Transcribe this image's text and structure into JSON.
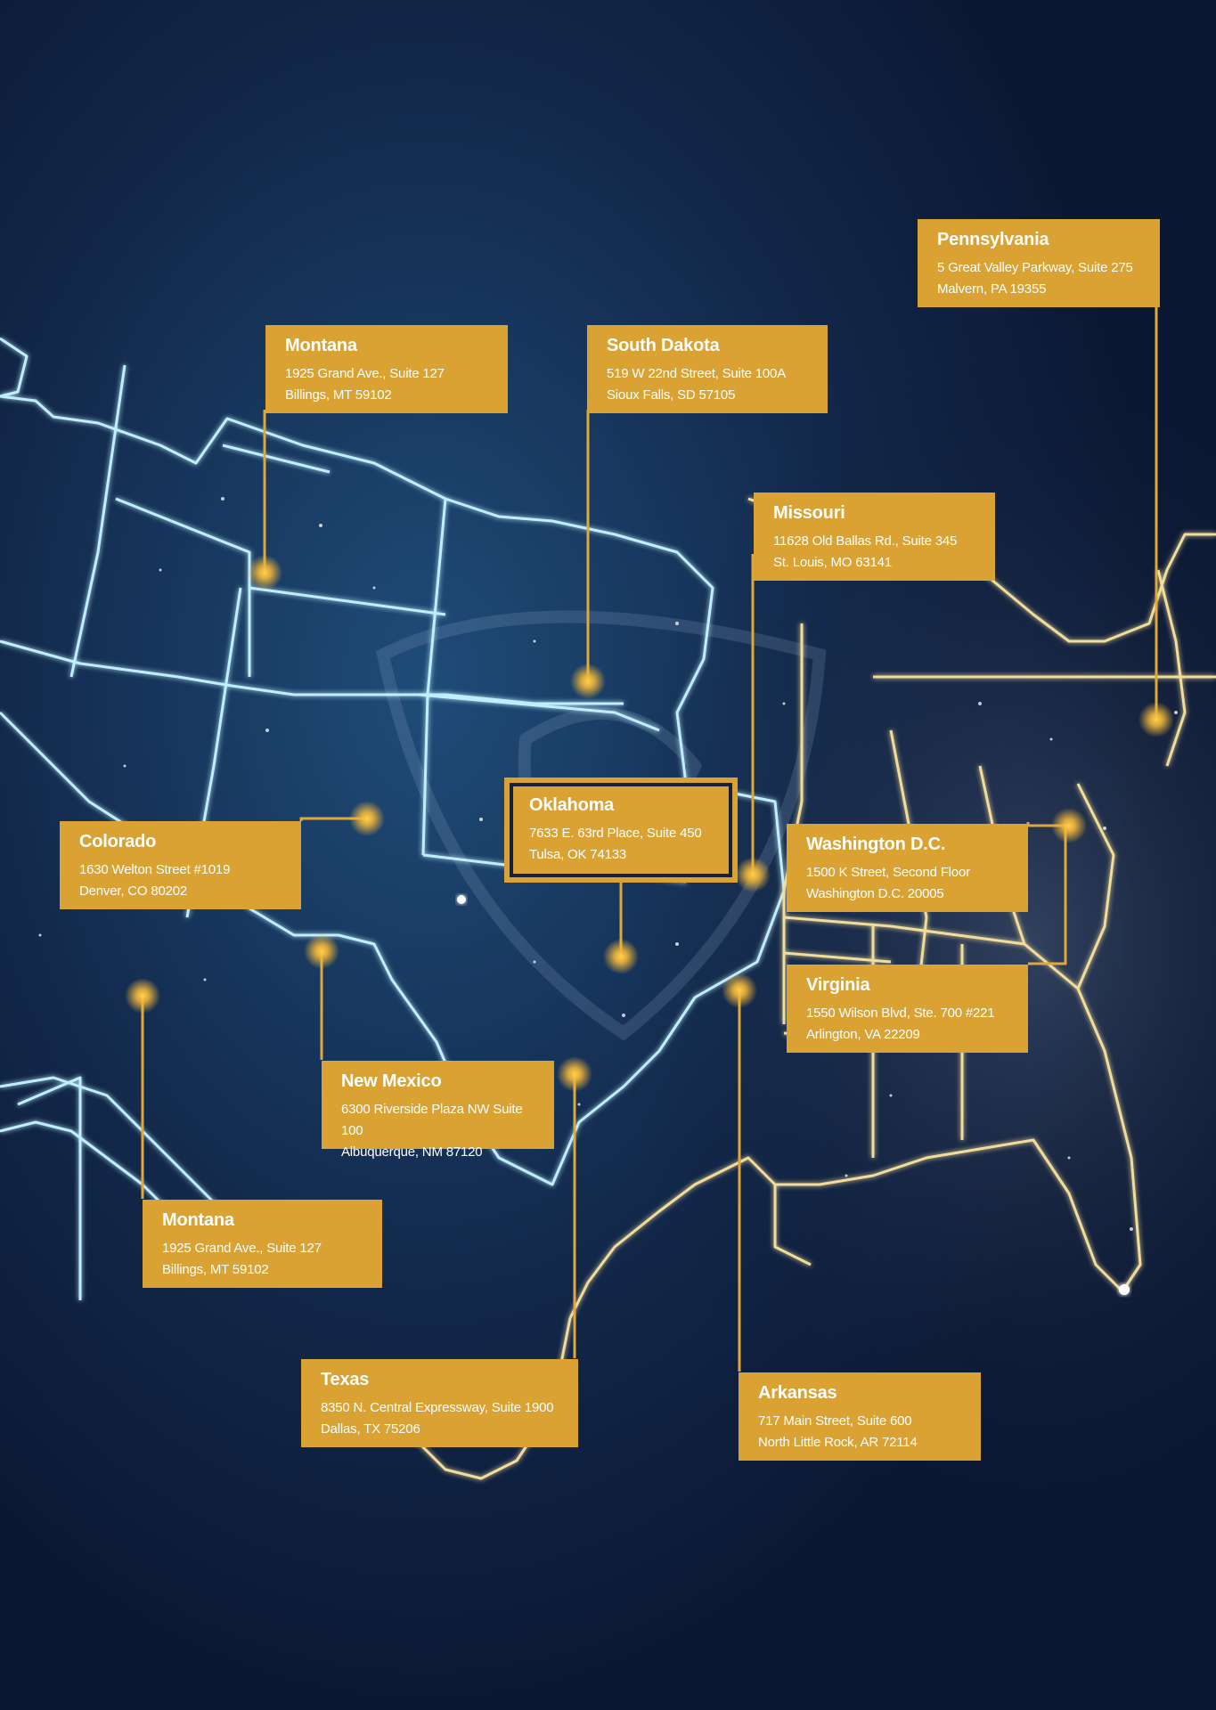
{
  "colors": {
    "background": "#0c1a36",
    "label_fill": "#d9a232",
    "label_text": "#ffffff",
    "connector": "#e0a83a",
    "west_outline": "#bfefff",
    "east_outline": "#f1dc9a",
    "featured_border": "#14213f"
  },
  "offices": [
    {
      "id": "montana-north",
      "name": "Montana",
      "address1": "1925 Grand Ave., Suite 127",
      "address2": "Billings, MT 59102"
    },
    {
      "id": "south-dakota",
      "name": "South Dakota",
      "address1": "519 W 22nd Street, Suite 100A",
      "address2": "Sioux Falls, SD 57105"
    },
    {
      "id": "pennsylvania",
      "name": "Pennsylvania",
      "address1": "5 Great Valley Parkway, Suite 275",
      "address2": "Malvern, PA 19355"
    },
    {
      "id": "missouri",
      "name": "Missouri",
      "address1": "11628 Old Ballas Rd., Suite 345",
      "address2": "St. Louis, MO 63141"
    },
    {
      "id": "oklahoma",
      "name": "Oklahoma",
      "address1": "7633 E. 63rd Place, Suite 450",
      "address2": "Tulsa, OK 74133",
      "featured": true
    },
    {
      "id": "colorado",
      "name": "Colorado",
      "address1": "1630 Welton Street #1019",
      "address2": "Denver, CO 80202"
    },
    {
      "id": "washington-dc",
      "name": "Washington D.C.",
      "address1": "1500 K Street, Second Floor",
      "address2": "Washington D.C. 20005"
    },
    {
      "id": "virginia",
      "name": "Virginia",
      "address1": "1550 Wilson Blvd, Ste. 700 #221",
      "address2": "Arlington, VA 22209"
    },
    {
      "id": "new-mexico",
      "name": "New Mexico",
      "address1": "6300 Riverside Plaza NW Suite 100",
      "address2": "Albuquerque, NM 87120"
    },
    {
      "id": "montana-south",
      "name": "Montana",
      "address1": "1925 Grand Ave., Suite 127",
      "address2": "Billings, MT 59102"
    },
    {
      "id": "texas",
      "name": "Texas",
      "address1": "8350 N. Central Expressway, Suite 1900",
      "address2": "Dallas, TX 75206"
    },
    {
      "id": "arkansas",
      "name": "Arkansas",
      "address1": "717 Main Street, Suite 600",
      "address2": "North Little Rock, AR 72114"
    }
  ]
}
